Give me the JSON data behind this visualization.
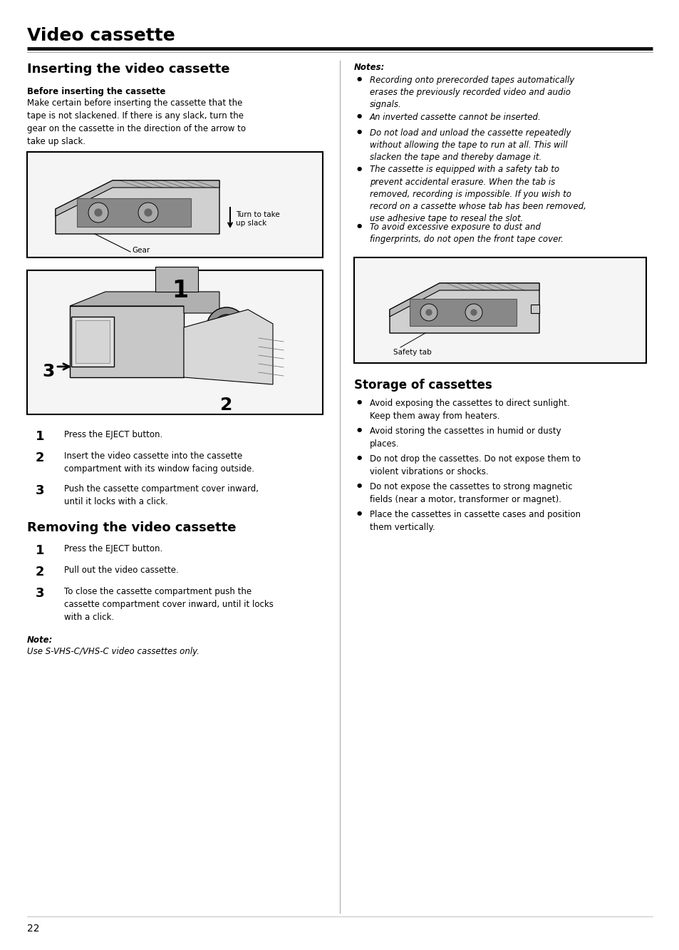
{
  "page_title": "Video cassette",
  "bg_color": "#ffffff",
  "text_color": "#000000",
  "title_fontsize": 18,
  "section_fontsize": 12,
  "subsection_fontsize": 9,
  "body_fontsize": 8.5,
  "small_fontsize": 8,
  "page_number": "22",
  "inserting_title": "Inserting the video cassette",
  "before_bold": "Before inserting the cassette",
  "before_text": "Make certain before inserting the cassette that the\ntape is not slackened. If there is any slack, turn the\ngear on the cassette in the direction of the arrow to\ntake up slack.",
  "diagram1_turn_label": "Turn to take\nup slack",
  "diagram1_gear_label": "Gear",
  "steps_insert": [
    {
      "num": "1",
      "text": "Press the EJECT button."
    },
    {
      "num": "2",
      "text": "Insert the video cassette into the cassette\ncompartment with its window facing outside."
    },
    {
      "num": "3",
      "text": "Push the cassette compartment cover inward,\nuntil it locks with a click."
    }
  ],
  "removing_title": "Removing the video cassette",
  "steps_remove": [
    {
      "num": "1",
      "text": "Press the EJECT button."
    },
    {
      "num": "2",
      "text": "Pull out the video cassette."
    },
    {
      "num": "3",
      "text": "To close the cassette compartment push the\ncassette compartment cover inward, until it locks\nwith a click."
    }
  ],
  "note_label": "Note:",
  "note_text": "Use S-VHS-C/VHS-C video cassettes only.",
  "notes_label": "Notes:",
  "notes_items": [
    "Recording onto prerecorded tapes automatically\nerases the previously recorded video and audio\nsignals.",
    "An inverted cassette cannot be inserted.",
    "Do not load and unload the cassette repeatedly\nwithout allowing the tape to run at all. This will\nslacken the tape and thereby damage it.",
    "The cassette is equipped with a safety tab to\nprevent accidental erasure. When the tab is\nremoved, recording is impossible. If you wish to\nrecord on a cassette whose tab has been removed,\nuse adhesive tape to reseal the slot.",
    "To avoid excessive exposure to dust and\nfingerprints, do not open the front tape cover."
  ],
  "safety_tab_label": "Safety tab",
  "storage_title": "Storage of cassettes",
  "storage_items": [
    "Avoid exposing the cassettes to direct sunlight.\nKeep them away from heaters.",
    "Avoid storing the cassettes in humid or dusty\nplaces.",
    "Do not drop the cassettes. Do not expose them to\nviolent vibrations or shocks.",
    "Do not expose the cassettes to strong magnetic\nfields (near a motor, transformer or magnet).",
    "Place the cassettes in cassette cases and position\nthem vertically."
  ]
}
